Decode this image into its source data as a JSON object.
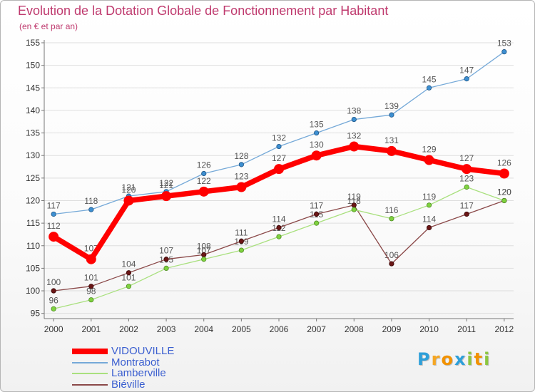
{
  "chart_data": {
    "type": "line",
    "title": "Evolution de la Dotation Globale de Fonctionnement par Habitant",
    "subtitle": "(en € et par an)",
    "xlabel": "",
    "ylabel": "",
    "categories": [
      "2000",
      "2001",
      "2002",
      "2003",
      "2004",
      "2005",
      "2006",
      "2007",
      "2008",
      "2009",
      "2010",
      "2011",
      "2012"
    ],
    "xlim": [
      1999.75,
      2012.25
    ],
    "ylim": [
      94,
      155
    ],
    "yticks": [
      95,
      100,
      105,
      110,
      115,
      120,
      125,
      130,
      135,
      140,
      145,
      150,
      155
    ],
    "grid": true,
    "legend_position": "bottom-left",
    "series": [
      {
        "name": "VIDOUVILLE",
        "color": "#ff0000",
        "marker_color": "#ff0000",
        "values": [
          112,
          107,
          120,
          121,
          122,
          123,
          127,
          130,
          132,
          131,
          129,
          127,
          126
        ]
      },
      {
        "name": "Montrabot",
        "color": "#75a9d8",
        "marker_color": "#3d8fd1",
        "values": [
          117,
          118,
          121,
          122,
          126,
          128,
          132,
          135,
          138,
          139,
          145,
          147,
          153
        ]
      },
      {
        "name": "Lamberville",
        "color": "#a9e07e",
        "marker_color": "#7fd23f",
        "values": [
          96,
          98,
          101,
          105,
          107,
          109,
          112,
          115,
          118,
          116,
          119,
          123,
          120
        ]
      },
      {
        "name": "Biéville",
        "color": "#8a4848",
        "marker_color": "#6a1515",
        "values": [
          100,
          101,
          104,
          107,
          108,
          111,
          114,
          117,
          119,
          106,
          114,
          117,
          120
        ]
      }
    ]
  },
  "logo": {
    "text": "Proxiti",
    "letter_colors": [
      "#2d9fd9",
      "#f5a623",
      "#f29200",
      "#2d9fd9",
      "#8cc63f",
      "#f29200",
      "#8cc63f"
    ]
  },
  "colors": {
    "title": "#bf3a6e",
    "legend_text": "#3b5fd0",
    "axis_text": "#333333",
    "label_text": "#555555"
  }
}
